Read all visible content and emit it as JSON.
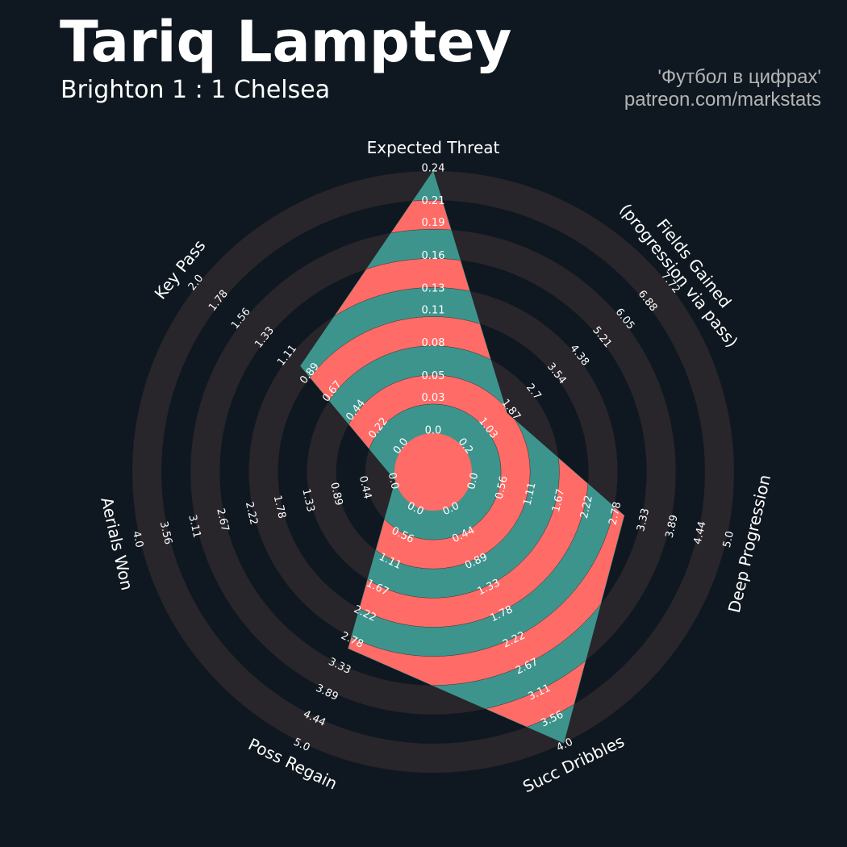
{
  "chart_data": {
    "type": "radar",
    "title": "Tariq Lamptey",
    "subtitle": "Brighton 1 : 1 Chelsea",
    "credits": [
      "'Футбол в цифрах'",
      "patreon.com/markstats"
    ],
    "categories": [
      "Expected Threat",
      "Fields Gained\n(progression via pass)",
      "Deep Progression",
      "Succ Dribbles",
      "Poss Regain",
      "Aerials Won",
      "Key Pass"
    ],
    "values": [
      0.24,
      1.8,
      3.0,
      4.0,
      3.0,
      0.0,
      1.0
    ],
    "axes": [
      {
        "lim": [
          0,
          0.24
        ],
        "ticks": [
          {
            "value": 0,
            "label": "0.0"
          },
          0.03,
          0.05,
          0.08,
          0.11,
          0.13,
          0.16,
          0.19,
          0.21,
          0.24
        ]
      },
      {
        "lim": [
          0.2,
          7.72
        ],
        "ticks": [
          0.2,
          1.03,
          1.87,
          2.7,
          3.54,
          4.38,
          5.21,
          6.05,
          6.88,
          7.72
        ]
      },
      {
        "lim": [
          0,
          5
        ],
        "ticks": [
          {
            "value": 0,
            "label": "0.0"
          },
          0.56,
          1.11,
          1.67,
          2.22,
          2.78,
          3.33,
          3.89,
          4.44,
          {
            "value": 5,
            "label": "5.0"
          }
        ]
      },
      {
        "lim": [
          0,
          4
        ],
        "ticks": [
          {
            "value": 0,
            "label": "0.0"
          },
          0.44,
          0.89,
          1.33,
          1.78,
          2.22,
          2.67,
          3.11,
          3.56,
          {
            "value": 4,
            "label": "4.0"
          }
        ]
      },
      {
        "lim": [
          0,
          5
        ],
        "ticks": [
          {
            "value": 0,
            "label": "0.0"
          },
          0.56,
          1.11,
          1.67,
          2.22,
          2.78,
          3.33,
          3.89,
          4.44,
          {
            "value": 5,
            "label": "5.0"
          }
        ]
      },
      {
        "lim": [
          0,
          4
        ],
        "ticks": [
          {
            "value": 0,
            "label": "0.0"
          },
          0.44,
          0.89,
          1.33,
          1.78,
          2.22,
          2.67,
          3.11,
          3.56,
          {
            "value": 4,
            "label": "4.0"
          }
        ]
      },
      {
        "lim": [
          0,
          2
        ],
        "ticks": [
          {
            "value": 0,
            "label": "0.0"
          },
          0.22,
          0.44,
          0.67,
          0.89,
          1.11,
          1.33,
          1.56,
          1.78,
          {
            "value": 2,
            "label": "2.0"
          }
        ]
      }
    ],
    "color": "#3d948d",
    "alt_color": "#ff6b66",
    "ring_color": "#28252b",
    "background": "#0f1820"
  }
}
